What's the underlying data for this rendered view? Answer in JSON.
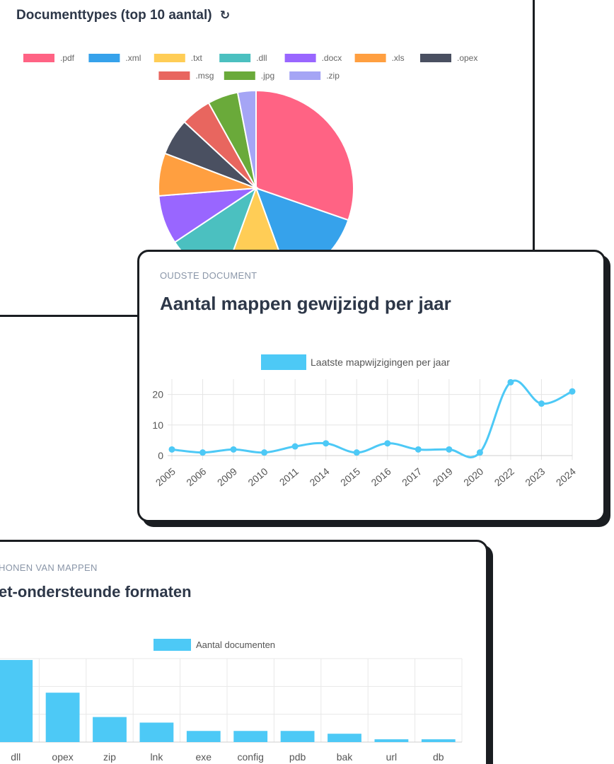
{
  "pie_card": {
    "title": "Documenttypes (top 10 aantal)",
    "refresh_icon": "refresh-icon"
  },
  "line_card": {
    "eyebrow": "OUDSTE DOCUMENT",
    "title": "Aantal mappen gewijzigd per jaar"
  },
  "bar_card": {
    "eyebrow": "HONEN VAN MAPPEN",
    "title": "et-ondersteunde formaten"
  },
  "chart_data": [
    {
      "type": "pie",
      "categories": [
        ".pdf",
        ".xml",
        ".txt",
        ".dll",
        ".docx",
        ".xls",
        ".opex",
        ".msg",
        ".jpg",
        ".zip"
      ],
      "values": [
        30,
        14,
        11,
        10,
        8,
        7,
        6,
        5,
        5,
        3
      ],
      "colors": [
        "#ff6384",
        "#36a2eb",
        "#ffcd56",
        "#4bc0c0",
        "#9966ff",
        "#ff9f40",
        "#4a5061",
        "#e8665f",
        "#6aaa3a",
        "#a5a5f5"
      ],
      "legend_position": "top"
    },
    {
      "type": "line",
      "x": [
        "2005",
        "2006",
        "2009",
        "2010",
        "2011",
        "2014",
        "2015",
        "2016",
        "2017",
        "2019",
        "2020",
        "2022",
        "2023",
        "2024"
      ],
      "series": [
        {
          "name": "Laatste mapwijzigingen per jaar",
          "values": [
            2,
            1,
            2,
            1,
            3,
            4,
            1,
            4,
            2,
            2,
            1,
            24,
            17,
            21
          ],
          "color": "#4dc9f6"
        }
      ],
      "yticks": [
        0,
        10,
        20
      ],
      "ylim": [
        0,
        25
      ],
      "grid": true,
      "legend_position": "top"
    },
    {
      "type": "bar",
      "categories": [
        "dll",
        "opex",
        "zip",
        "lnk",
        "exe",
        "config",
        "pdb",
        "bak",
        "url",
        "db"
      ],
      "series": [
        {
          "name": "Aantal documenten",
          "values": [
            118,
            71,
            36,
            28,
            16,
            16,
            16,
            12,
            4,
            4
          ],
          "color": "#4dc9f6"
        }
      ],
      "ylim": [
        0,
        120
      ],
      "grid": true,
      "legend_position": "top"
    }
  ]
}
